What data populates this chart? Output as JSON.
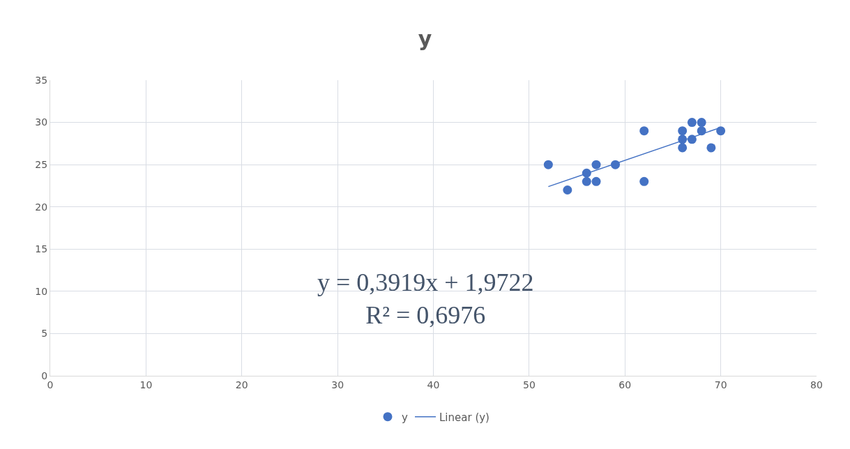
{
  "chart_data": {
    "type": "scatter",
    "title": "y",
    "series": [
      {
        "name": "y",
        "color": "#4472c4",
        "marker": "circle",
        "x": [
          52,
          54,
          56,
          56,
          57,
          57,
          59,
          62,
          62,
          66,
          66,
          66,
          67,
          67,
          68,
          68,
          69,
          70
        ],
        "values": [
          25,
          22,
          24,
          23,
          25,
          23,
          25,
          29,
          23,
          29,
          28,
          27,
          30,
          28,
          30,
          29,
          27,
          29
        ]
      },
      {
        "name": "Linear (y)",
        "type": "line",
        "color": "#4472c4",
        "line_style": "solid",
        "x": [
          52,
          70
        ],
        "values": [
          22.4,
          29.4
        ]
      }
    ],
    "xlim": [
      0,
      80
    ],
    "xticks": [
      0,
      10,
      20,
      30,
      40,
      50,
      60,
      70,
      80
    ],
    "ylim": [
      0,
      35
    ],
    "yticks": [
      0,
      5,
      10,
      15,
      20,
      25,
      30,
      35
    ],
    "grid": true,
    "legend": "bottom",
    "annotations": [
      "y = 0,3919x + 1,9722\nR² = 0,6976"
    ]
  }
}
